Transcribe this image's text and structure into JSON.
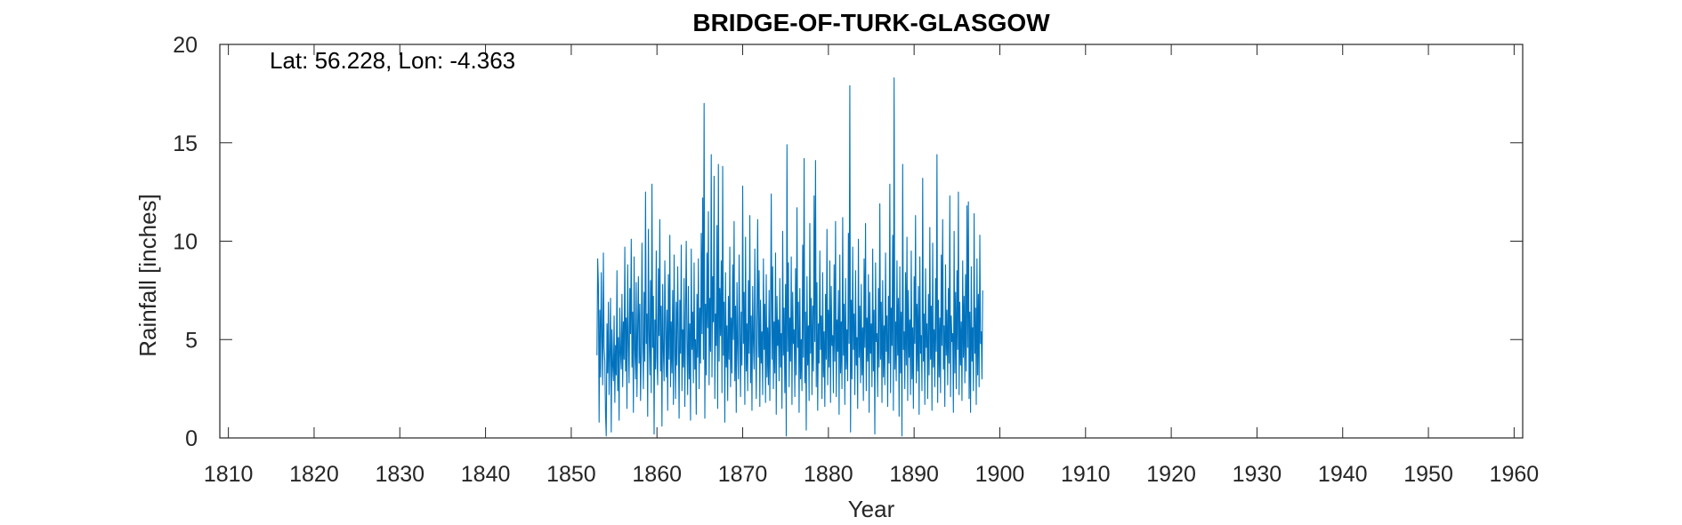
{
  "chart_data": {
    "type": "line",
    "title": "BRIDGE-OF-TURK-GLASGOW",
    "xlabel": "Year",
    "ylabel": "Rainfall [inches]",
    "annotation": "Lat: 56.228, Lon: -4.363",
    "xlim": [
      1809,
      1961
    ],
    "ylim": [
      0,
      20
    ],
    "xticks": [
      1810,
      1820,
      1830,
      1840,
      1850,
      1860,
      1870,
      1880,
      1890,
      1900,
      1910,
      1920,
      1930,
      1940,
      1950,
      1960
    ],
    "yticks": [
      0,
      5,
      10,
      15,
      20
    ],
    "grid": false,
    "line_color": "#0072BD",
    "series": [
      {
        "x_start": 1853.0,
        "x_step": 0.0833333,
        "values": [
          4.2,
          9.1,
          7.8,
          0.8,
          6.5,
          3.1,
          8.4,
          5.2,
          2.7,
          9.4,
          4.6,
          3.9,
          1.2,
          0.1,
          5.8,
          3.3,
          6.9,
          2.2,
          4.4,
          7.1,
          0.3,
          5.5,
          3.7,
          2.9,
          6.2,
          1.8,
          4.7,
          3.2,
          8.5,
          2.4,
          5.1,
          0.9,
          6.6,
          4.3,
          3.5,
          7.3,
          2.6,
          5.9,
          4.0,
          9.7,
          3.4,
          6.1,
          1.5,
          8.8,
          4.9,
          2.8,
          7.6,
          5.3,
          10.1,
          3.6,
          6.4,
          1.3,
          9.2,
          4.5,
          3.0,
          7.9,
          2.1,
          5.6,
          8.2,
          3.8,
          6.8,
          1.9,
          4.2,
          9.9,
          5.0,
          2.5,
          7.4,
          3.9,
          12.5,
          4.8,
          6.3,
          1.1,
          10.6,
          5.4,
          3.2,
          8.0,
          2.3,
          12.9,
          4.6,
          7.2,
          0.2,
          6.0,
          3.5,
          9.5,
          4.1,
          2.7,
          8.6,
          5.2,
          11.1,
          3.4,
          6.7,
          0.6,
          7.8,
          4.4,
          2.9,
          9.0,
          5.7,
          3.1,
          6.5,
          1.4,
          8.3,
          4.0,
          10.3,
          2.6,
          5.9,
          3.3,
          7.5,
          1.7,
          9.3,
          4.7,
          2.0,
          6.9,
          3.7,
          8.7,
          5.1,
          1.0,
          7.0,
          4.3,
          9.8,
          2.4,
          5.5,
          3.6,
          8.1,
          1.6,
          6.2,
          10.0,
          4.9,
          2.2,
          7.7,
          3.0,
          5.8,
          0.9,
          9.6,
          4.5,
          6.4,
          2.8,
          8.9,
          3.5,
          5.0,
          1.2,
          7.3,
          4.1,
          9.1,
          2.5,
          6.6,
          3.8,
          10.4,
          5.3,
          12.2,
          4.0,
          17.0,
          1.0,
          6.8,
          3.2,
          9.4,
          5.6,
          11.5,
          2.7,
          7.1,
          4.4,
          14.4,
          3.1,
          8.2,
          5.9,
          13.3,
          2.0,
          6.3,
          4.7,
          10.8,
          1.5,
          13.9,
          3.9,
          7.6,
          5.2,
          9.0,
          2.3,
          13.8,
          4.2,
          6.9,
          0.8,
          8.4,
          3.6,
          5.7,
          1.9,
          7.2,
          4.0,
          9.7,
          2.6,
          6.1,
          3.3,
          8.8,
          5.0,
          11.0,
          2.9,
          6.7,
          1.3,
          7.9,
          4.6,
          3.0,
          9.3,
          5.5,
          2.1,
          6.4,
          3.7,
          12.8,
          4.8,
          7.4,
          1.7,
          10.2,
          3.4,
          5.8,
          2.4,
          8.0,
          4.3,
          11.3,
          2.8,
          6.2,
          1.4,
          7.7,
          4.9,
          3.5,
          9.6,
          5.1,
          2.0,
          6.5,
          11.1,
          4.1,
          8.5,
          1.6,
          7.0,
          3.8,
          5.4,
          2.2,
          9.1,
          4.5,
          6.8,
          1.8,
          8.3,
          3.1,
          5.6,
          2.7,
          7.5,
          1.9,
          6.3,
          12.4,
          4.0,
          8.7,
          2.5,
          5.9,
          3.3,
          9.4,
          1.2,
          7.2,
          4.7,
          6.0,
          2.9,
          8.1,
          3.6,
          5.3,
          1.5,
          10.5,
          4.2,
          6.6,
          2.3,
          7.8,
          0.1,
          14.9,
          4.4,
          8.9,
          2.6,
          6.1,
          3.9,
          9.2,
          1.7,
          7.4,
          4.8,
          5.5,
          2.1,
          8.6,
          3.2,
          11.7,
          4.6,
          6.9,
          1.3,
          7.6,
          3.0,
          5.0,
          2.4,
          9.8,
          4.1,
          14.2,
          2.8,
          6.4,
          0.4,
          8.2,
          3.7,
          5.7,
          1.9,
          10.9,
          4.3,
          7.1,
          2.2,
          6.7,
          3.4,
          12.3,
          4.9,
          14.1,
          2.6,
          7.9,
          1.4,
          5.8,
          3.8,
          9.5,
          4.5,
          6.2,
          2.0,
          8.4,
          3.1,
          5.4,
          1.6,
          7.3,
          4.0,
          10.6,
          2.7,
          6.5,
          3.6,
          9.0,
          1.8,
          7.7,
          4.7,
          5.2,
          2.3,
          8.8,
          3.9,
          11.0,
          2.1,
          6.0,
          4.4,
          7.5,
          1.2,
          9.3,
          3.3,
          5.9,
          2.5,
          11.2,
          4.2,
          6.8,
          1.7,
          8.1,
          3.5,
          5.5,
          2.9,
          10.4,
          4.8,
          17.9,
          0.3,
          7.0,
          3.0,
          9.7,
          4.5,
          6.3,
          2.2,
          8.5,
          3.7,
          5.1,
          1.5,
          10.1,
          4.1,
          6.7,
          2.8,
          7.8,
          3.2,
          5.6,
          1.9,
          9.1,
          4.6,
          10.9,
          2.4,
          6.1,
          3.9,
          8.3,
          1.3,
          7.4,
          4.3,
          5.8,
          2.6,
          9.6,
          3.4,
          6.5,
          0.2,
          8.9,
          4.9,
          5.3,
          2.1,
          7.6,
          3.6,
          11.9,
          4.0,
          6.9,
          1.8,
          8.0,
          3.1,
          5.7,
          2.7,
          9.4,
          4.4,
          6.2,
          1.6,
          7.2,
          3.8,
          12.9,
          2.3,
          6.6,
          4.7,
          10.3,
          1.4,
          18.3,
          3.5,
          5.9,
          2.9,
          9.0,
          4.2,
          7.1,
          1.1,
          8.7,
          3.3,
          6.4,
          0.1,
          13.9,
          4.5,
          5.4,
          2.5,
          8.4,
          3.7,
          10.2,
          1.9,
          7.5,
          4.1,
          6.0,
          2.2,
          9.5,
          3.0,
          5.6,
          1.5,
          8.2,
          4.8,
          11.3,
          2.8,
          6.8,
          3.4,
          7.7,
          1.2,
          9.2,
          4.3,
          5.2,
          2.4,
          13.2,
          3.9,
          6.3,
          1.7,
          8.6,
          4.6,
          5.8,
          2.0,
          7.3,
          3.2,
          10.7,
          4.0,
          6.7,
          1.4,
          9.9,
          3.6,
          5.5,
          2.6,
          8.1,
          4.4,
          14.4,
          1.8,
          7.0,
          3.1,
          6.1,
          2.3,
          9.3,
          4.7,
          11.1,
          3.5,
          5.7,
          1.6,
          8.8,
          4.2,
          6.5,
          2.7,
          7.6,
          3.8,
          12.3,
          2.1,
          6.2,
          4.9,
          5.3,
          1.3,
          10.5,
          3.3,
          7.4,
          2.5,
          8.5,
          4.5,
          12.5,
          2.2,
          6.9,
          3.7,
          5.9,
          1.9,
          9.0,
          4.1,
          7.2,
          2.8,
          8.3,
          3.4,
          11.8,
          4.6,
          12.0,
          2.0,
          6.4,
          1.3,
          8.7,
          3.9,
          5.6,
          2.4,
          11.4,
          4.3,
          6.6,
          1.7,
          9.1,
          3.2,
          7.3,
          2.6,
          10.3,
          4.8,
          5.4,
          3.0,
          7.5
        ]
      }
    ]
  }
}
